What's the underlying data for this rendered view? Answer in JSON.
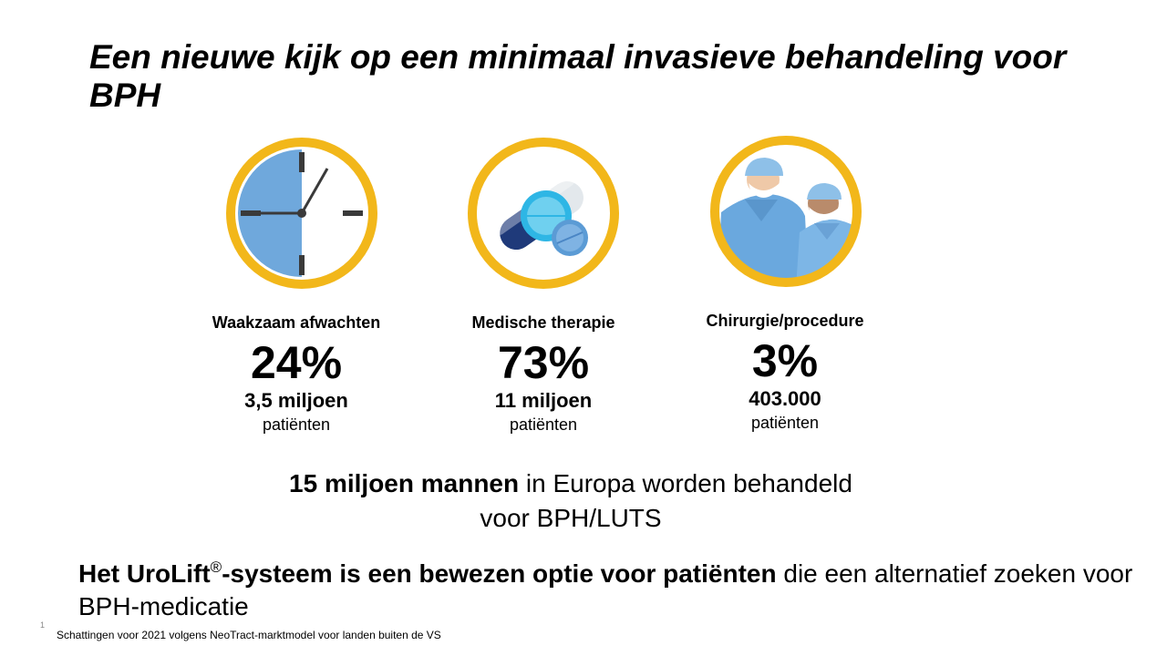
{
  "slide": {
    "title": "Een nieuwe kijk op een minimaal invasieve behandeling voor BPH",
    "icons": [
      "clock-icon",
      "pills-icon",
      "surgeons-icon"
    ],
    "colors": {
      "ring": "#F2B71A",
      "clock_face": "#6FA8DC",
      "pill_light_blue": "#2EB6E5",
      "pill_dark_blue": "#1F3A7A",
      "scrubs_blue": "#6AA8DE"
    },
    "stats": [
      {
        "label": "Waakzaam afwachten",
        "percent": "24%",
        "count": "3,5 miljoen",
        "unit": "patiënten"
      },
      {
        "label": "Medische therapie",
        "percent": "73%",
        "count": "11 miljoen",
        "unit": "patiënten"
      },
      {
        "label": "Chirurgie/procedure",
        "percent": "3%",
        "count": "403.000",
        "unit": "patiënten"
      }
    ],
    "summary": {
      "bold": "15 miljoen mannen",
      "rest": " in Europa worden behandeld voor BPH/LUTS"
    },
    "statement": {
      "bold_1": "Het UroLift",
      "sup": "®",
      "bold_2": "-systeem is een bewezen optie voor patiënten",
      "rest": " die een alternatief zoeken voor BPH-medicatie"
    },
    "slide_number": "1",
    "footnote": "Schattingen voor 2021 volgens NeoTract-marktmodel voor landen buiten de VS"
  }
}
